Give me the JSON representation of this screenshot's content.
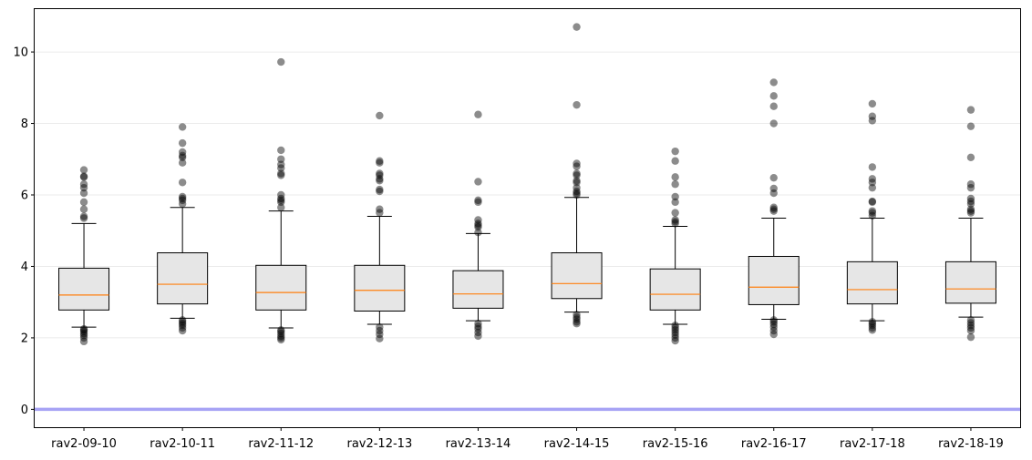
{
  "chart_data": {
    "type": "box",
    "title": "",
    "xlabel": "",
    "ylabel": "",
    "ylim": [
      -0.5,
      11.2
    ],
    "yticks": [
      0,
      2,
      4,
      6,
      8,
      10
    ],
    "grid": "horizontal",
    "reference_line": {
      "y": 0,
      "color": "#a7a3f5"
    },
    "colors": {
      "box_fill": "#e6e6e6",
      "box_edge": "#000000",
      "median": "#ff7f0e",
      "outlier": "#000000",
      "grid": "#ebebeb"
    },
    "categories": [
      "rav2-09-10",
      "rav2-10-11",
      "rav2-11-12",
      "rav2-12-13",
      "rav2-13-14",
      "rav2-14-15",
      "rav2-15-16",
      "rav2-16-17",
      "rav2-17-18",
      "rav2-18-19"
    ],
    "boxes": [
      {
        "label": "rav2-09-10",
        "whisker_low": 2.3,
        "q1": 2.78,
        "median": 3.2,
        "q3": 3.95,
        "whisker_high": 5.2,
        "outliers": [
          1.9,
          2.0,
          2.07,
          2.12,
          2.18,
          2.22,
          2.25,
          5.35,
          5.4,
          5.6,
          5.8,
          6.05,
          6.2,
          6.3,
          6.5,
          6.52,
          6.7
        ]
      },
      {
        "label": "rav2-10-11",
        "whisker_low": 2.55,
        "q1": 2.95,
        "median": 3.5,
        "q3": 4.38,
        "whisker_high": 5.65,
        "outliers": [
          2.2,
          2.28,
          2.35,
          2.4,
          2.45,
          2.5,
          5.75,
          5.85,
          5.9,
          5.95,
          6.35,
          6.9,
          7.05,
          7.1,
          7.2,
          7.45,
          7.9
        ]
      },
      {
        "label": "rav2-11-12",
        "whisker_low": 2.28,
        "q1": 2.78,
        "median": 3.27,
        "q3": 4.03,
        "whisker_high": 5.55,
        "outliers": [
          1.95,
          2.0,
          2.05,
          2.12,
          2.18,
          2.22,
          5.65,
          5.8,
          5.85,
          5.9,
          6.0,
          6.55,
          6.6,
          6.75,
          6.85,
          7.0,
          7.25,
          9.72
        ]
      },
      {
        "label": "rav2-12-13",
        "whisker_low": 2.38,
        "q1": 2.75,
        "median": 3.33,
        "q3": 4.03,
        "whisker_high": 5.4,
        "outliers": [
          1.98,
          2.1,
          2.2,
          2.3,
          5.5,
          5.6,
          6.1,
          6.15,
          6.4,
          6.45,
          6.55,
          6.6,
          6.9,
          6.95,
          8.22
        ]
      },
      {
        "label": "rav2-13-14",
        "whisker_low": 2.48,
        "q1": 2.83,
        "median": 3.23,
        "q3": 3.88,
        "whisker_high": 4.92,
        "outliers": [
          2.05,
          2.15,
          2.25,
          2.32,
          2.4,
          4.95,
          5.1,
          5.15,
          5.2,
          5.3,
          5.8,
          5.85,
          6.37,
          8.25
        ]
      },
      {
        "label": "rav2-14-15",
        "whisker_low": 2.72,
        "q1": 3.1,
        "median": 3.52,
        "q3": 4.38,
        "whisker_high": 5.93,
        "outliers": [
          2.4,
          2.45,
          2.52,
          2.58,
          2.65,
          6.0,
          6.05,
          6.1,
          6.2,
          6.35,
          6.4,
          6.55,
          6.6,
          6.8,
          6.88,
          8.52,
          10.7
        ]
      },
      {
        "label": "rav2-15-16",
        "whisker_low": 2.38,
        "q1": 2.78,
        "median": 3.22,
        "q3": 3.93,
        "whisker_high": 5.12,
        "outliers": [
          1.92,
          2.0,
          2.08,
          2.15,
          2.22,
          2.28,
          2.35,
          5.2,
          5.25,
          5.3,
          5.5,
          5.8,
          5.95,
          6.3,
          6.5,
          6.95,
          7.22
        ]
      },
      {
        "label": "rav2-16-17",
        "whisker_low": 2.52,
        "q1": 2.93,
        "median": 3.42,
        "q3": 4.28,
        "whisker_high": 5.35,
        "outliers": [
          2.1,
          2.2,
          2.3,
          2.38,
          2.45,
          2.5,
          5.55,
          5.6,
          5.65,
          6.05,
          6.18,
          6.48,
          8.0,
          8.48,
          8.77,
          9.15
        ]
      },
      {
        "label": "rav2-17-18",
        "whisker_low": 2.48,
        "q1": 2.95,
        "median": 3.35,
        "q3": 4.13,
        "whisker_high": 5.35,
        "outliers": [
          2.22,
          2.28,
          2.35,
          2.4,
          2.45,
          5.42,
          5.5,
          5.55,
          5.8,
          5.82,
          6.2,
          6.35,
          6.45,
          6.78,
          8.08,
          8.2,
          8.55
        ]
      },
      {
        "label": "rav2-18-19",
        "whisker_low": 2.58,
        "q1": 2.97,
        "median": 3.37,
        "q3": 4.13,
        "whisker_high": 5.35,
        "outliers": [
          2.02,
          2.2,
          2.28,
          2.35,
          2.42,
          2.5,
          5.5,
          5.55,
          5.6,
          5.75,
          5.82,
          5.9,
          6.2,
          6.3,
          7.05,
          7.92,
          8.38
        ]
      }
    ]
  }
}
